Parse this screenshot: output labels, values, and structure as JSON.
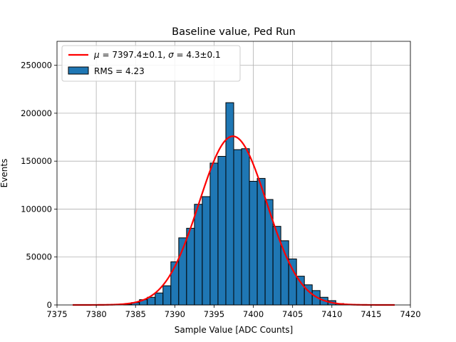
{
  "chart_data": {
    "type": "bar",
    "title": "Baseline value, Ped Run",
    "xlabel": "Sample Value [ADC Counts]",
    "ylabel": "Events",
    "xlim": [
      7375,
      7420
    ],
    "ylim": [
      0,
      275000
    ],
    "x_ticks": [
      7375,
      7380,
      7385,
      7390,
      7395,
      7400,
      7405,
      7410,
      7415,
      7420
    ],
    "y_ticks": [
      0,
      50000,
      100000,
      150000,
      200000,
      250000
    ],
    "grid": true,
    "legend_position": "top-left",
    "bin_width": 1,
    "histogram": {
      "name": "RMS = 4.23",
      "color": "#1f77b4",
      "bins": [
        {
          "x": 7384,
          "value": 800
        },
        {
          "x": 7385,
          "value": 2500
        },
        {
          "x": 7386,
          "value": 5500
        },
        {
          "x": 7387,
          "value": 8000
        },
        {
          "x": 7388,
          "value": 12500
        },
        {
          "x": 7389,
          "value": 20000
        },
        {
          "x": 7390,
          "value": 45000
        },
        {
          "x": 7391,
          "value": 70000
        },
        {
          "x": 7392,
          "value": 80000
        },
        {
          "x": 7393,
          "value": 105000
        },
        {
          "x": 7394,
          "value": 113000
        },
        {
          "x": 7395,
          "value": 148000
        },
        {
          "x": 7396,
          "value": 155000
        },
        {
          "x": 7397,
          "value": 211000
        },
        {
          "x": 7398,
          "value": 162000
        },
        {
          "x": 7399,
          "value": 163000
        },
        {
          "x": 7400,
          "value": 129000
        },
        {
          "x": 7401,
          "value": 132000
        },
        {
          "x": 7402,
          "value": 110000
        },
        {
          "x": 7403,
          "value": 82000
        },
        {
          "x": 7404,
          "value": 67000
        },
        {
          "x": 7405,
          "value": 48000
        },
        {
          "x": 7406,
          "value": 30000
        },
        {
          "x": 7407,
          "value": 21000
        },
        {
          "x": 7408,
          "value": 15000
        },
        {
          "x": 7409,
          "value": 8000
        },
        {
          "x": 7410,
          "value": 4500
        },
        {
          "x": 7411,
          "value": 1500
        },
        {
          "x": 7412,
          "value": 500
        }
      ]
    },
    "fit": {
      "type": "gaussian",
      "name": "μ = 7397.4±0.1, σ = 4.3±0.1",
      "label_parts": {
        "mu_symbol": "μ",
        "mu_text": " = 7397.4±0.1, ",
        "sigma_symbol": "σ",
        "sigma_text": " = 4.3±0.1"
      },
      "color": "#ff0000",
      "mu": 7397.4,
      "sigma": 4.3,
      "amplitude": 176000,
      "x_range": [
        7377,
        7418
      ]
    }
  }
}
